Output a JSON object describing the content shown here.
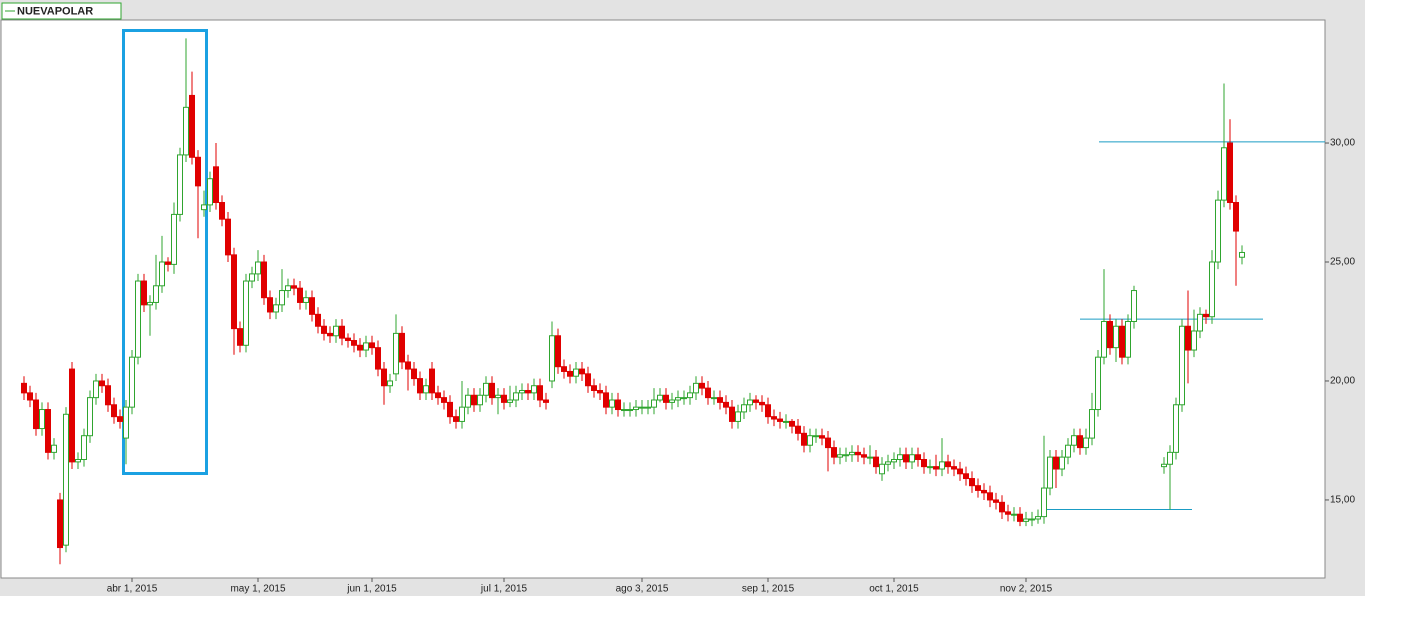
{
  "chart_data": {
    "type": "candlestick",
    "name": "NUEVAPOLAR",
    "up_color": "#2fa52f",
    "down_color": "#e00000",
    "hline_color": "#1a9cc4",
    "ylim": [
      11.72,
      35.17
    ],
    "yticks": [
      {
        "value": 15,
        "label": "15,00"
      },
      {
        "value": 20,
        "label": "20,00"
      },
      {
        "value": 25,
        "label": "25,00"
      },
      {
        "value": 30,
        "label": "30,00"
      }
    ],
    "hlines": [
      30.05,
      22.6,
      14.6
    ],
    "categories": [
      null,
      null,
      null,
      null,
      null,
      null,
      null,
      null,
      null,
      null,
      null,
      null,
      null,
      null,
      null,
      null,
      null,
      null,
      "abr 1, 2015",
      null,
      null,
      null,
      null,
      null,
      null,
      null,
      null,
      null,
      null,
      null,
      null,
      null,
      null,
      null,
      null,
      null,
      null,
      null,
      null,
      "may 1, 2015",
      null,
      null,
      null,
      null,
      null,
      null,
      null,
      null,
      null,
      null,
      null,
      null,
      null,
      null,
      null,
      null,
      null,
      null,
      "jun 1, 2015",
      null,
      null,
      null,
      null,
      null,
      null,
      null,
      null,
      null,
      null,
      null,
      null,
      null,
      null,
      null,
      null,
      null,
      null,
      null,
      null,
      null,
      "jul 1, 2015",
      null,
      null,
      null,
      null,
      null,
      null,
      null,
      null,
      null,
      null,
      null,
      null,
      null,
      null,
      null,
      null,
      null,
      null,
      null,
      null,
      null,
      null,
      "ago 3, 2015",
      null,
      null,
      null,
      null,
      null,
      null,
      null,
      null,
      null,
      null,
      null,
      null,
      null,
      null,
      null,
      null,
      null,
      null,
      null,
      null,
      "sep 1, 2015",
      null,
      null,
      null,
      null,
      null,
      null,
      null,
      null,
      null,
      null,
      null,
      null,
      null,
      null,
      null,
      null,
      null,
      null,
      null,
      null,
      "oct 1, 2015",
      null,
      null,
      null,
      null,
      null,
      null,
      null,
      null,
      null,
      null,
      null,
      null,
      null,
      null,
      null,
      null,
      null,
      null,
      null,
      null,
      null,
      "nov 2, 2015",
      null,
      null,
      null,
      null,
      null,
      null,
      null,
      null,
      null,
      null,
      null,
      null,
      null,
      null,
      null,
      null,
      null,
      null,
      null,
      null,
      null,
      null,
      null,
      null,
      null,
      null,
      null,
      null,
      null,
      null,
      null,
      null,
      null,
      null,
      null,
      null
    ],
    "open": [
      19.9,
      19.5,
      19.2,
      18.0,
      18.8,
      17.0,
      15.0,
      13.1,
      20.5,
      16.6,
      16.7,
      17.7,
      19.3,
      20.0,
      19.8,
      19.0,
      18.5,
      17.6,
      18.9,
      21.0,
      24.2,
      23.2,
      23.3,
      24.0,
      25.0,
      24.9,
      27.0,
      29.5,
      32.0,
      29.4,
      27.2,
      27.4,
      29.0,
      27.5,
      26.8,
      25.3,
      22.2,
      21.5,
      24.2,
      24.5,
      25.0,
      23.5,
      22.9,
      23.2,
      23.8,
      24.0,
      23.9,
      23.3,
      23.5,
      22.8,
      22.3,
      22.0,
      21.9,
      22.3,
      21.8,
      21.7,
      21.5,
      21.3,
      21.6,
      21.4,
      20.5,
      19.8,
      20.3,
      22.0,
      20.8,
      20.5,
      20.1,
      19.5,
      20.5,
      19.5,
      19.3,
      19.1,
      18.5,
      18.3,
      18.9,
      19.4,
      19.0,
      19.4,
      19.9,
      19.3,
      19.4,
      19.1,
      19.2,
      19.5,
      19.6,
      19.5,
      19.8,
      19.2,
      20.0,
      21.9,
      20.6,
      20.4,
      20.2,
      20.5,
      20.3,
      19.8,
      19.6,
      19.5,
      18.9,
      19.2,
      18.8,
      18.8,
      18.8,
      18.9,
      18.9,
      18.9,
      19.2,
      19.4,
      19.1,
      19.2,
      19.3,
      19.3,
      19.5,
      19.9,
      19.7,
      19.3,
      19.3,
      19.1,
      18.9,
      18.3,
      18.7,
      19.0,
      19.2,
      19.1,
      19.0,
      18.5,
      18.4,
      18.3,
      18.3,
      18.1,
      17.8,
      17.3,
      17.7,
      17.7,
      17.6,
      17.2,
      16.8,
      16.9,
      16.9,
      17.0,
      16.9,
      16.8,
      16.8,
      16.1,
      16.5,
      16.6,
      16.7,
      16.9,
      16.6,
      16.9,
      16.7,
      16.4,
      16.4,
      16.3,
      16.6,
      16.4,
      16.3,
      16.1,
      15.9,
      15.6,
      15.4,
      15.3,
      15.0,
      14.9,
      14.5,
      14.4,
      14.4,
      14.1,
      14.2,
      14.2,
      14.3,
      15.5,
      16.8,
      16.3,
      16.8,
      17.3,
      17.7,
      17.2,
      17.6,
      18.8,
      21.0,
      22.5,
      21.4,
      22.3,
      21.0,
      22.5,
      null,
      null,
      null,
      null,
      16.4,
      16.5,
      17.0,
      19.0,
      22.3,
      21.3,
      22.1,
      22.8,
      22.7,
      25.0,
      27.6,
      30.0,
      27.5,
      25.2
    ],
    "high": [
      20.2,
      19.8,
      19.5,
      19.1,
      19.1,
      17.6,
      15.3,
      18.9,
      20.8,
      17.0,
      18.0,
      19.6,
      20.3,
      20.3,
      20.1,
      19.3,
      18.8,
      19.2,
      21.3,
      24.5,
      24.5,
      23.6,
      25.3,
      26.1,
      25.2,
      27.5,
      29.8,
      34.4,
      33.0,
      29.7,
      28.0,
      28.8,
      30.0,
      27.8,
      27.1,
      25.6,
      22.5,
      24.5,
      24.8,
      25.5,
      25.3,
      23.8,
      23.5,
      24.7,
      24.3,
      24.3,
      24.2,
      23.8,
      23.8,
      23.1,
      22.6,
      22.3,
      22.6,
      22.6,
      22.0,
      22.0,
      21.8,
      21.9,
      21.9,
      21.7,
      20.8,
      20.3,
      22.8,
      22.3,
      21.1,
      20.8,
      20.4,
      20.1,
      20.8,
      19.8,
      19.6,
      19.4,
      18.8,
      20.0,
      19.7,
      19.7,
      19.7,
      20.2,
      20.2,
      19.7,
      19.7,
      19.8,
      19.8,
      19.9,
      19.9,
      20.1,
      20.1,
      19.5,
      22.5,
      22.2,
      20.9,
      20.7,
      20.8,
      20.8,
      20.6,
      20.1,
      19.9,
      19.8,
      19.5,
      19.5,
      19.1,
      19.1,
      19.2,
      19.2,
      19.2,
      19.7,
      19.7,
      19.7,
      19.5,
      19.6,
      19.6,
      19.8,
      20.2,
      20.2,
      20.0,
      19.6,
      19.6,
      19.4,
      19.2,
      19.0,
      19.3,
      19.5,
      19.4,
      19.4,
      19.3,
      18.8,
      18.7,
      18.6,
      18.4,
      18.4,
      18.1,
      18.0,
      18.0,
      18.0,
      17.9,
      17.5,
      17.2,
      17.2,
      17.3,
      17.3,
      17.2,
      17.3,
      17.1,
      16.8,
      16.9,
      17.0,
      17.2,
      17.2,
      17.2,
      17.2,
      17.0,
      16.7,
      16.9,
      17.6,
      16.9,
      16.7,
      16.6,
      16.4,
      16.2,
      15.9,
      15.7,
      15.6,
      15.3,
      15.2,
      14.8,
      14.7,
      14.7,
      14.5,
      14.5,
      14.6,
      17.7,
      17.1,
      17.1,
      17.1,
      17.6,
      18.0,
      18.0,
      18.0,
      19.5,
      21.3,
      24.7,
      22.8,
      22.6,
      22.6,
      22.8,
      24.0,
      null,
      null,
      null,
      null,
      16.8,
      17.3,
      19.3,
      22.6,
      23.8,
      23.0,
      23.1,
      23.0,
      25.5,
      28.0,
      32.5,
      31.0,
      27.8,
      25.7
    ],
    "low": [
      19.2,
      18.9,
      17.7,
      17.7,
      16.7,
      16.7,
      12.3,
      12.8,
      16.3,
      16.3,
      16.4,
      17.4,
      19.0,
      19.5,
      18.7,
      18.2,
      18.0,
      16.5,
      18.6,
      20.7,
      22.9,
      21.9,
      23.0,
      23.7,
      24.6,
      24.5,
      26.7,
      29.2,
      29.1,
      26.0,
      26.9,
      27.1,
      27.2,
      26.5,
      25.0,
      21.1,
      21.2,
      21.2,
      23.9,
      24.2,
      23.2,
      22.6,
      22.6,
      22.9,
      23.5,
      23.6,
      23.0,
      23.0,
      22.5,
      22.0,
      21.7,
      21.6,
      21.6,
      21.5,
      21.4,
      21.2,
      21.0,
      21.0,
      21.1,
      20.2,
      19.0,
      19.5,
      20.0,
      20.5,
      19.6,
      19.8,
      19.2,
      19.2,
      19.2,
      19.0,
      18.8,
      18.2,
      18.0,
      18.0,
      18.6,
      18.7,
      18.7,
      19.1,
      19.0,
      18.6,
      18.8,
      18.9,
      18.9,
      19.2,
      19.2,
      19.2,
      18.9,
      18.8,
      19.7,
      20.3,
      20.1,
      19.9,
      19.9,
      20.0,
      19.5,
      19.3,
      19.2,
      18.6,
      18.6,
      18.5,
      18.5,
      18.5,
      18.5,
      18.6,
      18.6,
      18.6,
      19.1,
      18.8,
      18.8,
      18.9,
      19.0,
      19.0,
      19.2,
      19.4,
      19.0,
      19.0,
      18.8,
      18.6,
      18.0,
      18.0,
      18.4,
      18.7,
      18.8,
      18.7,
      18.2,
      18.1,
      18.0,
      18.0,
      17.8,
      17.5,
      17.0,
      17.0,
      17.4,
      17.3,
      16.2,
      16.5,
      16.5,
      16.6,
      16.6,
      16.6,
      16.5,
      16.5,
      16.1,
      15.8,
      16.2,
      16.3,
      16.4,
      16.3,
      16.3,
      16.4,
      16.1,
      16.1,
      16.0,
      16.0,
      16.1,
      16.0,
      15.8,
      15.6,
      15.3,
      15.1,
      15.0,
      14.7,
      14.6,
      14.2,
      14.1,
      14.1,
      13.9,
      13.9,
      13.9,
      14.0,
      14.0,
      15.2,
      15.5,
      16.0,
      16.5,
      17.0,
      16.9,
      16.9,
      17.3,
      18.5,
      20.7,
      21.1,
      20.8,
      20.7,
      20.7,
      22.2,
      null,
      null,
      null,
      null,
      16.1,
      14.6,
      16.7,
      18.7,
      19.9,
      21.0,
      21.8,
      22.4,
      22.4,
      24.7,
      27.3,
      27.2,
      24.0,
      24.9
    ],
    "close": [
      19.5,
      19.2,
      18.0,
      18.8,
      17.0,
      17.3,
      13.0,
      18.6,
      16.6,
      16.7,
      17.7,
      19.3,
      20.0,
      19.8,
      19.0,
      18.5,
      18.3,
      18.9,
      21.0,
      24.2,
      23.2,
      23.3,
      24.0,
      25.0,
      24.9,
      27.0,
      29.5,
      31.5,
      29.4,
      28.2,
      27.4,
      28.5,
      27.5,
      26.8,
      25.3,
      22.2,
      21.5,
      24.2,
      24.5,
      25.0,
      23.5,
      22.9,
      23.2,
      23.8,
      24.0,
      23.9,
      23.3,
      23.5,
      22.8,
      22.3,
      22.0,
      21.9,
      22.3,
      21.8,
      21.7,
      21.5,
      21.3,
      21.6,
      21.4,
      20.5,
      19.8,
      20.0,
      22.0,
      20.8,
      20.5,
      20.1,
      19.5,
      19.8,
      19.5,
      19.3,
      19.1,
      18.5,
      18.3,
      18.9,
      19.4,
      19.0,
      19.4,
      19.9,
      19.3,
      19.4,
      19.1,
      19.2,
      19.5,
      19.6,
      19.5,
      19.8,
      19.2,
      19.1,
      21.9,
      20.6,
      20.4,
      20.2,
      20.5,
      20.3,
      19.8,
      19.6,
      19.5,
      18.9,
      19.2,
      18.8,
      18.8,
      18.8,
      18.9,
      18.9,
      18.9,
      19.2,
      19.4,
      19.1,
      19.2,
      19.3,
      19.3,
      19.5,
      19.9,
      19.7,
      19.3,
      19.3,
      19.1,
      18.9,
      18.3,
      18.7,
      19.0,
      19.2,
      19.1,
      19.0,
      18.5,
      18.4,
      18.3,
      18.3,
      18.1,
      17.8,
      17.3,
      17.7,
      17.7,
      17.6,
      17.2,
      16.8,
      16.9,
      16.9,
      17.0,
      16.9,
      16.8,
      16.8,
      16.4,
      16.5,
      16.6,
      16.7,
      16.9,
      16.6,
      16.9,
      16.7,
      16.4,
      16.4,
      16.3,
      16.6,
      16.4,
      16.3,
      16.1,
      15.9,
      15.6,
      15.4,
      15.3,
      15.0,
      14.9,
      14.5,
      14.4,
      14.4,
      14.1,
      14.2,
      14.2,
      14.3,
      15.5,
      16.8,
      16.3,
      16.8,
      17.3,
      17.7,
      17.2,
      17.6,
      18.8,
      21.0,
      22.5,
      21.4,
      22.3,
      21.0,
      22.5,
      23.8,
      null,
      null,
      null,
      null,
      16.5,
      17.0,
      19.0,
      22.3,
      21.3,
      22.1,
      22.8,
      22.7,
      25.0,
      27.6,
      29.8,
      27.5,
      26.3,
      25.4
    ]
  }
}
